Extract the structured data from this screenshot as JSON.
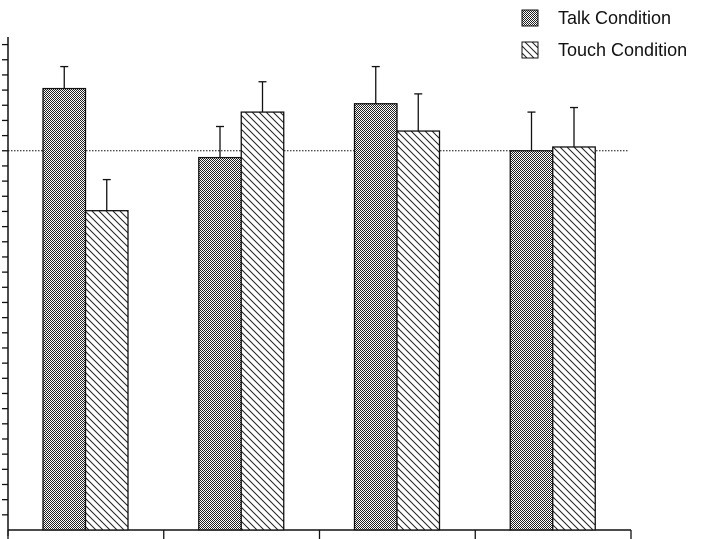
{
  "chart_data": {
    "type": "bar",
    "title": "",
    "xlabel": "",
    "ylabel": "",
    "ylim": [
      0,
      6.5
    ],
    "y_major_tick_step": 1,
    "y_minor_tick_step": 0.2,
    "tick_labels_visible": false,
    "grid": false,
    "reference_line": {
      "value": 5,
      "style": "dotted"
    },
    "legend_position": "top-right",
    "group_count": 4,
    "series": [
      {
        "name": "Talk Condition",
        "pattern": "dense-checker",
        "values": [
          5.82,
          4.91,
          5.62,
          5.0
        ],
        "errors": [
          0.29,
          0.41,
          0.49,
          0.51
        ]
      },
      {
        "name": "Touch Condition",
        "pattern": "diagonal-hatch",
        "values": [
          4.21,
          5.51,
          5.26,
          5.05
        ],
        "errors": [
          0.41,
          0.4,
          0.49,
          0.52
        ]
      }
    ],
    "colors": {
      "stroke": "#111111",
      "background": "#ffffff"
    }
  }
}
